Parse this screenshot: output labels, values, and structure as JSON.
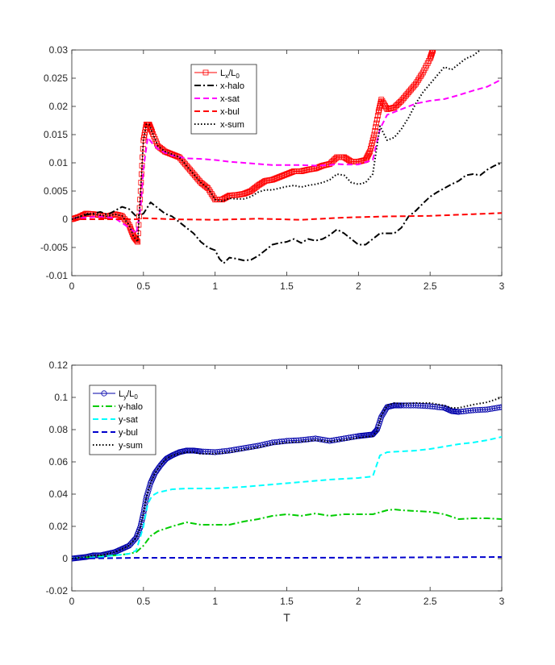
{
  "chart_data": [
    {
      "type": "line",
      "xlabel": "",
      "ylabel": "",
      "xlim": [
        0,
        3
      ],
      "ylim": [
        -0.01,
        0.03
      ],
      "xticks": [
        "0",
        "0.5",
        "1",
        "1.5",
        "2",
        "2.5",
        "3"
      ],
      "yticks": [
        "-0.01",
        "-0.005",
        "0",
        "0.005",
        "0.01",
        "0.015",
        "0.02",
        "0.025",
        "0.03"
      ],
      "grid": false,
      "legend_position": "top-center",
      "series": [
        {
          "name": "Lx/L0",
          "legend_main": "L",
          "legend_sub1": "x",
          "legend_mid": "/L",
          "legend_sub2": "0",
          "color": "#ff0000",
          "style": "solid",
          "marker": "square",
          "x": [
            0,
            0.05,
            0.1,
            0.15,
            0.2,
            0.25,
            0.3,
            0.35,
            0.4,
            0.43,
            0.46,
            0.48,
            0.5,
            0.52,
            0.54,
            0.56,
            0.6,
            0.65,
            0.7,
            0.75,
            0.8,
            0.85,
            0.9,
            0.95,
            1.0,
            1.05,
            1.1,
            1.15,
            1.2,
            1.25,
            1.3,
            1.35,
            1.4,
            1.45,
            1.5,
            1.55,
            1.6,
            1.65,
            1.7,
            1.75,
            1.8,
            1.85,
            1.9,
            1.95,
            2.0,
            2.05,
            2.08,
            2.11,
            2.14,
            2.16,
            2.2,
            2.25,
            2.3,
            2.35,
            2.4,
            2.45,
            2.5,
            2.52
          ],
          "y": [
            0,
            0.0004,
            0.001,
            0.0009,
            0.0007,
            0.0005,
            0.0009,
            0.0006,
            -0.001,
            -0.003,
            -0.004,
            0.005,
            0.014,
            0.0168,
            0.0168,
            0.0155,
            0.013,
            0.012,
            0.0115,
            0.011,
            0.0095,
            0.008,
            0.0065,
            0.0055,
            0.0035,
            0.0035,
            0.0042,
            0.0043,
            0.0045,
            0.005,
            0.006,
            0.0068,
            0.007,
            0.0075,
            0.008,
            0.0085,
            0.0085,
            0.0088,
            0.009,
            0.0095,
            0.0098,
            0.011,
            0.011,
            0.0102,
            0.0102,
            0.0105,
            0.012,
            0.015,
            0.019,
            0.0212,
            0.0195,
            0.0198,
            0.021,
            0.0225,
            0.024,
            0.026,
            0.0285,
            0.03
          ]
        },
        {
          "name": "x-halo",
          "color": "#000000",
          "style": "dashdot",
          "x": [
            0,
            0.1,
            0.15,
            0.2,
            0.25,
            0.3,
            0.35,
            0.4,
            0.45,
            0.5,
            0.55,
            0.6,
            0.65,
            0.7,
            0.75,
            0.8,
            0.85,
            0.9,
            0.95,
            1.0,
            1.03,
            1.06,
            1.1,
            1.15,
            1.2,
            1.25,
            1.3,
            1.35,
            1.4,
            1.45,
            1.5,
            1.55,
            1.6,
            1.65,
            1.7,
            1.75,
            1.8,
            1.85,
            1.9,
            1.95,
            2.0,
            2.05,
            2.1,
            2.15,
            2.2,
            2.25,
            2.3,
            2.35,
            2.4,
            2.45,
            2.5,
            2.55,
            2.6,
            2.65,
            2.7,
            2.75,
            2.8,
            2.85,
            2.9,
            2.95,
            3.0
          ],
          "y": [
            0,
            0.0008,
            0.001,
            0.0013,
            0.0008,
            0.0015,
            0.0022,
            0.0018,
            0.0005,
            0.001,
            0.003,
            0.002,
            0.001,
            0.0005,
            -0.0005,
            -0.0015,
            -0.0025,
            -0.004,
            -0.005,
            -0.0055,
            -0.007,
            -0.0078,
            -0.0068,
            -0.007,
            -0.0073,
            -0.0072,
            -0.0065,
            -0.0055,
            -0.0045,
            -0.0042,
            -0.004,
            -0.0035,
            -0.0042,
            -0.0035,
            -0.0038,
            -0.0035,
            -0.0028,
            -0.0018,
            -0.0025,
            -0.0035,
            -0.0045,
            -0.0045,
            -0.0035,
            -0.0025,
            -0.0025,
            -0.0025,
            -0.0015,
            0.0005,
            0.0015,
            0.0028,
            0.004,
            0.0048,
            0.0055,
            0.0062,
            0.0068,
            0.0078,
            0.008,
            0.0078,
            0.0088,
            0.0095,
            0.01
          ]
        },
        {
          "name": "x-sat",
          "color": "#ff00ff",
          "style": "dashed",
          "x": [
            0,
            0.1,
            0.2,
            0.3,
            0.4,
            0.45,
            0.48,
            0.5,
            0.53,
            0.56,
            0.6,
            0.65,
            0.7,
            0.8,
            0.9,
            1.0,
            1.1,
            1.2,
            1.3,
            1.4,
            1.5,
            1.6,
            1.7,
            1.8,
            1.85,
            1.9,
            2.0,
            2.1,
            2.15,
            2.2,
            2.3,
            2.4,
            2.5,
            2.6,
            2.7,
            2.8,
            2.9,
            3.0
          ],
          "y": [
            0,
            0.0003,
            0.0005,
            0.0002,
            -0.0015,
            -0.0025,
            0.002,
            0.009,
            0.0145,
            0.0135,
            0.0125,
            0.0118,
            0.0113,
            0.0108,
            0.0107,
            0.0105,
            0.0102,
            0.01,
            0.0098,
            0.0096,
            0.0096,
            0.0096,
            0.0095,
            0.0096,
            0.0098,
            0.0097,
            0.0097,
            0.0105,
            0.016,
            0.0185,
            0.0195,
            0.0205,
            0.021,
            0.0213,
            0.022,
            0.0228,
            0.0235,
            0.0248
          ]
        },
        {
          "name": "x-bul",
          "color": "#ff0000",
          "style": "dashed",
          "x": [
            0,
            0.1,
            0.2,
            0.3,
            0.45,
            0.5,
            0.7,
            1.0,
            1.3,
            1.6,
            1.9,
            2.2,
            2.5,
            2.8,
            3.0
          ],
          "y": [
            0,
            0,
            0,
            0,
            0,
            0.0002,
            0,
            -0.0001,
            0.0001,
            -0.0001,
            0.0003,
            0.0005,
            0.0006,
            0.0009,
            0.0011
          ]
        },
        {
          "name": "x-sum",
          "color": "#000000",
          "style": "dotted",
          "x": [
            0,
            0.05,
            0.1,
            0.15,
            0.2,
            0.25,
            0.3,
            0.35,
            0.4,
            0.43,
            0.46,
            0.48,
            0.5,
            0.52,
            0.54,
            0.56,
            0.6,
            0.65,
            0.7,
            0.75,
            0.8,
            0.85,
            0.9,
            0.95,
            1.0,
            1.05,
            1.1,
            1.15,
            1.2,
            1.25,
            1.3,
            1.35,
            1.4,
            1.45,
            1.5,
            1.55,
            1.6,
            1.65,
            1.7,
            1.75,
            1.8,
            1.85,
            1.9,
            1.95,
            2.0,
            2.05,
            2.1,
            2.15,
            2.2,
            2.25,
            2.3,
            2.35,
            2.4,
            2.45,
            2.5,
            2.55,
            2.6,
            2.65,
            2.7,
            2.75,
            2.8,
            2.85
          ],
          "y": [
            0,
            0.0004,
            0.001,
            0.0009,
            0.0007,
            0.0005,
            0.0009,
            0.0006,
            -0.001,
            -0.003,
            -0.004,
            0.005,
            0.014,
            0.0168,
            0.0168,
            0.0155,
            0.013,
            0.012,
            0.0115,
            0.011,
            0.0095,
            0.008,
            0.0065,
            0.0055,
            0.0035,
            0.0032,
            0.0037,
            0.0036,
            0.0036,
            0.004,
            0.0048,
            0.0052,
            0.0052,
            0.0055,
            0.0058,
            0.006,
            0.0057,
            0.006,
            0.0062,
            0.0065,
            0.007,
            0.008,
            0.0078,
            0.0065,
            0.0062,
            0.0065,
            0.008,
            0.0165,
            0.014,
            0.0145,
            0.016,
            0.018,
            0.0205,
            0.0225,
            0.024,
            0.0255,
            0.027,
            0.0265,
            0.0275,
            0.0285,
            0.029,
            0.03
          ]
        }
      ]
    },
    {
      "type": "line",
      "xlabel": "T",
      "ylabel": "",
      "xlim": [
        0,
        3
      ],
      "ylim": [
        -0.02,
        0.12
      ],
      "xticks": [
        "0",
        "0.5",
        "1",
        "1.5",
        "2",
        "2.5",
        "3"
      ],
      "yticks": [
        "-0.02",
        "0",
        "0.02",
        "0.04",
        "0.06",
        "0.08",
        "0.1",
        "0.12"
      ],
      "grid": false,
      "legend_position": "top-left",
      "series": [
        {
          "name": "Ly/L0",
          "legend_main": "L",
          "legend_sub1": "y",
          "legend_mid": "/L",
          "legend_sub2": "0",
          "color": "#0000aa",
          "style": "solid",
          "marker": "circle",
          "x": [
            0,
            0.05,
            0.1,
            0.15,
            0.2,
            0.25,
            0.3,
            0.35,
            0.4,
            0.45,
            0.48,
            0.5,
            0.52,
            0.55,
            0.58,
            0.62,
            0.66,
            0.7,
            0.75,
            0.8,
            0.85,
            0.9,
            1.0,
            1.1,
            1.2,
            1.3,
            1.4,
            1.5,
            1.6,
            1.7,
            1.8,
            1.9,
            2.0,
            2.05,
            2.1,
            2.13,
            2.16,
            2.2,
            2.25,
            2.3,
            2.4,
            2.5,
            2.6,
            2.65,
            2.7,
            2.8,
            2.9,
            3.0
          ],
          "y": [
            0,
            0.0005,
            0.001,
            0.002,
            0.002,
            0.003,
            0.004,
            0.006,
            0.008,
            0.013,
            0.02,
            0.028,
            0.038,
            0.047,
            0.053,
            0.058,
            0.062,
            0.064,
            0.066,
            0.067,
            0.067,
            0.0665,
            0.066,
            0.067,
            0.0685,
            0.07,
            0.072,
            0.073,
            0.0735,
            0.0745,
            0.073,
            0.0745,
            0.076,
            0.0765,
            0.077,
            0.08,
            0.088,
            0.094,
            0.095,
            0.095,
            0.095,
            0.0945,
            0.0935,
            0.0915,
            0.091,
            0.092,
            0.0925,
            0.094
          ]
        },
        {
          "name": "y-halo",
          "color": "#00cc00",
          "style": "dashdot",
          "x": [
            0,
            0.2,
            0.3,
            0.4,
            0.45,
            0.5,
            0.55,
            0.6,
            0.7,
            0.8,
            0.9,
            1.0,
            1.1,
            1.2,
            1.3,
            1.4,
            1.5,
            1.6,
            1.7,
            1.8,
            1.9,
            2.0,
            2.1,
            2.2,
            2.25,
            2.3,
            2.4,
            2.5,
            2.6,
            2.7,
            2.8,
            2.9,
            3.0
          ],
          "y": [
            0,
            0.0015,
            0.002,
            0.003,
            0.004,
            0.008,
            0.014,
            0.017,
            0.02,
            0.0225,
            0.021,
            0.021,
            0.021,
            0.023,
            0.0245,
            0.0265,
            0.0275,
            0.0265,
            0.028,
            0.0265,
            0.0275,
            0.0275,
            0.0275,
            0.03,
            0.0305,
            0.03,
            0.0295,
            0.029,
            0.0275,
            0.0245,
            0.025,
            0.025,
            0.0245
          ]
        },
        {
          "name": "y-sat",
          "color": "#00ffff",
          "style": "dashed",
          "x": [
            0,
            0.2,
            0.3,
            0.4,
            0.45,
            0.5,
            0.53,
            0.56,
            0.6,
            0.7,
            0.8,
            1.0,
            1.2,
            1.4,
            1.6,
            1.8,
            2.0,
            2.1,
            2.15,
            2.2,
            2.3,
            2.4,
            2.5,
            2.6,
            2.7,
            2.8,
            2.9,
            3.0
          ],
          "y": [
            0,
            0.001,
            0.002,
            0.003,
            0.005,
            0.02,
            0.034,
            0.039,
            0.041,
            0.043,
            0.0435,
            0.0435,
            0.0445,
            0.046,
            0.0475,
            0.049,
            0.05,
            0.051,
            0.064,
            0.066,
            0.0665,
            0.067,
            0.068,
            0.0695,
            0.071,
            0.072,
            0.0735,
            0.0755
          ]
        },
        {
          "name": "y-bul",
          "color": "#0000cc",
          "style": "dashed",
          "x": [
            0,
            0.5,
            1.0,
            1.5,
            2.0,
            2.5,
            3.0
          ],
          "y": [
            0,
            0.0005,
            0.0005,
            0.0005,
            0.0006,
            0.0008,
            0.001
          ]
        },
        {
          "name": "y-sum",
          "color": "#000000",
          "style": "dotted",
          "x": [
            0,
            0.05,
            0.1,
            0.15,
            0.2,
            0.25,
            0.3,
            0.35,
            0.4,
            0.45,
            0.48,
            0.5,
            0.52,
            0.55,
            0.58,
            0.62,
            0.66,
            0.7,
            0.75,
            0.8,
            0.85,
            0.9,
            1.0,
            1.1,
            1.2,
            1.3,
            1.4,
            1.5,
            1.6,
            1.7,
            1.8,
            1.9,
            2.0,
            2.05,
            2.1,
            2.13,
            2.16,
            2.2,
            2.25,
            2.3,
            2.4,
            2.5,
            2.6,
            2.65,
            2.7,
            2.8,
            2.9,
            3.0
          ],
          "y": [
            0,
            0.0005,
            0.001,
            0.002,
            0.002,
            0.003,
            0.004,
            0.006,
            0.008,
            0.013,
            0.02,
            0.028,
            0.038,
            0.047,
            0.053,
            0.058,
            0.062,
            0.064,
            0.065,
            0.066,
            0.066,
            0.065,
            0.065,
            0.066,
            0.0675,
            0.069,
            0.071,
            0.072,
            0.0725,
            0.0735,
            0.0725,
            0.0735,
            0.075,
            0.0755,
            0.076,
            0.079,
            0.089,
            0.095,
            0.0965,
            0.096,
            0.0965,
            0.0965,
            0.095,
            0.0935,
            0.0935,
            0.0955,
            0.097,
            0.1
          ]
        }
      ]
    }
  ]
}
